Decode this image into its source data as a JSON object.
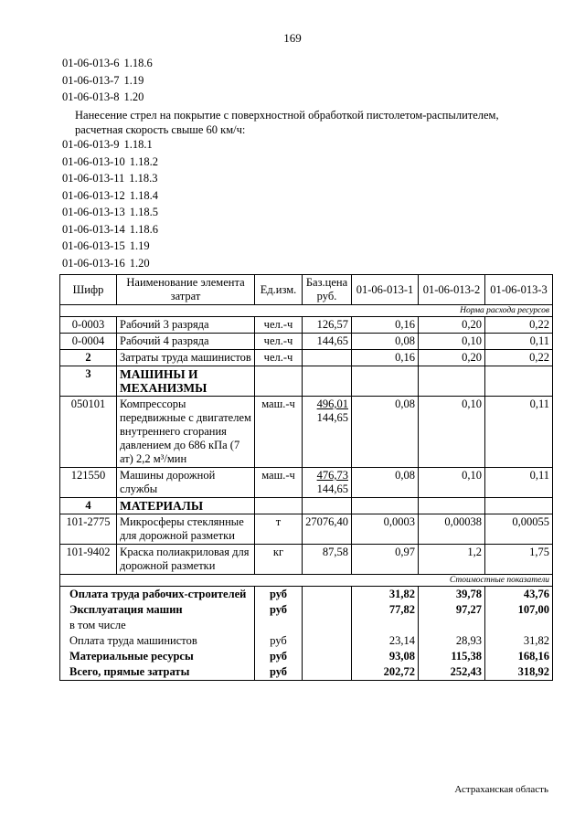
{
  "page_number": "169",
  "code_lines_1": [
    {
      "code": "01-06-013-6",
      "ref": "1.18.6"
    },
    {
      "code": "01-06-013-7",
      "ref": "1.19"
    },
    {
      "code": "01-06-013-8",
      "ref": "1.20"
    }
  ],
  "paragraph": "Нанесение стрел на покрытие с поверхностной обработкой пистолетом-распылителем, расчетная скорость свыше 60 км/ч:",
  "code_lines_2": [
    {
      "code": "01-06-013-9",
      "ref": "1.18.1"
    },
    {
      "code": "01-06-013-10",
      "ref": "1.18.2"
    },
    {
      "code": "01-06-013-11",
      "ref": "1.18.3"
    },
    {
      "code": "01-06-013-12",
      "ref": "1.18.4"
    },
    {
      "code": "01-06-013-13",
      "ref": "1.18.5"
    },
    {
      "code": "01-06-013-14",
      "ref": "1.18.6"
    },
    {
      "code": "01-06-013-15",
      "ref": "1.19"
    },
    {
      "code": "01-06-013-16",
      "ref": "1.20"
    }
  ],
  "table": {
    "header": [
      "Шифр",
      "Наименование элемента затрат",
      "Ед.изм.",
      "Баз.цена руб.",
      "01-06-013-1",
      "01-06-013-2",
      "01-06-013-3"
    ],
    "section_1": "Норма расхода ресурсов",
    "rows": [
      {
        "code": "0-0003",
        "name": "Рабочий 3 разряда",
        "unit": "чел.-ч",
        "price": [
          "126,57"
        ],
        "values": [
          "0,16",
          "0,20",
          "0,22"
        ]
      },
      {
        "code": "0-0004",
        "name": "Рабочий 4 разряда",
        "unit": "чел.-ч",
        "price": [
          "144,65"
        ],
        "values": [
          "0,08",
          "0,10",
          "0,11"
        ]
      },
      {
        "code": "2",
        "name": "Затраты труда машинистов",
        "unit": "чел.-ч",
        "values": [
          "0,16",
          "0,20",
          "0,22"
        ],
        "bold_code": true
      },
      {
        "code": "3",
        "name": "МАШИНЫ И МЕХАНИЗМЫ",
        "bold_code": true,
        "bold_name": true
      },
      {
        "code": "050101",
        "name": "Компрессоры передвижные с двигателем внутреннего сгорания давлением до 686 кПа (7 ат) 2,2 м³/мин",
        "unit": "маш.-ч",
        "price": [
          "496,01",
          "144,65"
        ],
        "values": [
          "0,08",
          "0,10",
          "0,11"
        ]
      },
      {
        "code": "121550",
        "name": "Машины дорожной службы",
        "unit": "маш.-ч",
        "price": [
          "476,73",
          "144,65"
        ],
        "values": [
          "0,08",
          "0,10",
          "0,11"
        ]
      },
      {
        "code": "4",
        "name": "МАТЕРИАЛЫ",
        "bold_code": true,
        "bold_name": true
      },
      {
        "code": "101-2775",
        "name": "Микросферы стеклянные для дорожной разметки",
        "unit": "т",
        "price": [
          "27076,40"
        ],
        "values": [
          "0,0003",
          "0,00038",
          "0,00055"
        ]
      },
      {
        "code": "101-9402",
        "name": "Краска полиакриловая для дорожной разметки",
        "unit": "кг",
        "price": [
          "87,58"
        ],
        "values": [
          "0,97",
          "1,2",
          "1,75"
        ]
      }
    ],
    "section_2": "Стоимостные показатели",
    "summary": [
      {
        "name": "Оплата труда рабочих-строителей",
        "unit": "руб",
        "values": [
          "31,82",
          "39,78",
          "43,76"
        ],
        "bold": true
      },
      {
        "name": "Эксплуатация машин",
        "unit": "руб",
        "values": [
          "77,82",
          "97,27",
          "107,00"
        ],
        "bold": true
      },
      {
        "name": "в том числе"
      },
      {
        "name": "Оплата труда машинистов",
        "unit": "руб",
        "values": [
          "23,14",
          "28,93",
          "31,82"
        ]
      },
      {
        "name": "Материальные ресурсы",
        "unit": "руб",
        "values": [
          "93,08",
          "115,38",
          "168,16"
        ],
        "bold": true
      },
      {
        "name": "Всего, прямые затраты",
        "unit": "руб",
        "values": [
          "202,72",
          "252,43",
          "318,92"
        ],
        "bold": true
      }
    ]
  },
  "footer": "Астраханская область"
}
